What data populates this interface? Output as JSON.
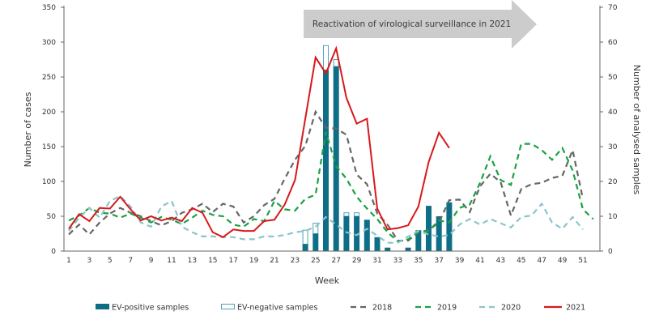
{
  "chart_data": {
    "type": "bar+line",
    "title": "",
    "xlabel": "Week",
    "ylabel_left": "Number of cases",
    "ylabel_right": "Number of analysed samples",
    "ylim_left": [
      0,
      350
    ],
    "ylim_right": [
      0,
      70
    ],
    "yticks_left": [
      0,
      50,
      100,
      150,
      200,
      250,
      300,
      350
    ],
    "yticks_right": [
      0,
      10,
      20,
      30,
      40,
      50,
      60,
      70
    ],
    "xticks": [
      1,
      3,
      5,
      7,
      9,
      11,
      13,
      15,
      17,
      19,
      21,
      23,
      25,
      27,
      29,
      31,
      33,
      35,
      37,
      39,
      41,
      43,
      45,
      47,
      49,
      51
    ],
    "x_range": [
      1,
      52
    ],
    "grid": false,
    "annotation": {
      "text": "Reactivation of virological surveillance in 2021",
      "shape": "arrow",
      "from_week": 24,
      "to_week": 47
    },
    "legend_position": "bottom",
    "bars": {
      "axis": "right",
      "weeks": [
        24,
        25,
        26,
        27,
        28,
        29,
        30,
        31,
        32,
        33,
        34,
        35,
        36,
        37,
        38
      ],
      "series": [
        {
          "name": "EV-positive samples",
          "color": "#0f6e87",
          "values": [
            2,
            5,
            52,
            53,
            10,
            10,
            9,
            4,
            1,
            0,
            1,
            6,
            13,
            10,
            14
          ]
        },
        {
          "name": "EV-negative samples",
          "color": "#ffffff",
          "stroke": "#4fa3b8",
          "values": [
            4,
            3,
            7,
            2,
            1,
            1,
            0,
            0,
            0,
            0,
            0,
            0,
            0,
            0,
            0
          ]
        }
      ]
    },
    "lines": [
      {
        "name": "2018",
        "color": "#666666",
        "dashed": true,
        "axis": "left",
        "weeks": [
          1,
          2,
          3,
          4,
          5,
          6,
          7,
          8,
          9,
          10,
          11,
          12,
          13,
          14,
          15,
          16,
          17,
          18,
          19,
          20,
          21,
          22,
          23,
          24,
          25,
          26,
          27,
          28,
          29,
          30,
          31,
          32,
          33,
          34,
          35,
          36,
          37,
          38,
          39,
          40,
          41,
          42,
          43,
          44,
          45,
          46,
          47,
          48,
          49,
          50,
          51
        ],
        "values": [
          24,
          38,
          24,
          41,
          54,
          62,
          55,
          50,
          43,
          37,
          43,
          55,
          60,
          68,
          56,
          68,
          64,
          41,
          50,
          66,
          75,
          104,
          131,
          151,
          200,
          177,
          176,
          167,
          110,
          96,
          54,
          38,
          15,
          15,
          27,
          30,
          41,
          73,
          74,
          56,
          93,
          111,
          99,
          51,
          89,
          96,
          98,
          105,
          108,
          145,
          75
        ]
      },
      {
        "name": "2019",
        "color": "#1aa142",
        "dashed": true,
        "axis": "left",
        "weeks": [
          1,
          2,
          3,
          4,
          5,
          6,
          7,
          8,
          9,
          10,
          11,
          12,
          13,
          14,
          15,
          16,
          17,
          18,
          19,
          20,
          21,
          22,
          23,
          24,
          25,
          26,
          27,
          28,
          29,
          30,
          31,
          32,
          33,
          34,
          35,
          36,
          37,
          38,
          39,
          40,
          41,
          42,
          43,
          44,
          45,
          46,
          47,
          48,
          49,
          50,
          51,
          52
        ],
        "values": [
          44,
          51,
          62,
          55,
          54,
          48,
          54,
          48,
          41,
          49,
          45,
          39,
          48,
          58,
          52,
          50,
          38,
          35,
          46,
          43,
          72,
          60,
          58,
          75,
          81,
          171,
          122,
          104,
          78,
          61,
          46,
          27,
          14,
          17,
          27,
          29,
          44,
          41,
          62,
          67,
          98,
          136,
          102,
          95,
          154,
          154,
          145,
          131,
          148,
          116,
          60,
          46
        ]
      },
      {
        "name": "2020",
        "color": "#8cc4cc",
        "dashed": true,
        "axis": "left",
        "weeks": [
          1,
          2,
          3,
          4,
          5,
          6,
          7,
          8,
          9,
          10,
          11,
          12,
          13,
          14,
          15,
          16,
          17,
          18,
          19,
          20,
          21,
          22,
          23,
          24,
          25,
          26,
          27,
          28,
          29,
          30,
          31,
          32,
          33,
          34,
          35,
          36,
          37,
          38,
          39,
          40,
          41,
          42,
          43,
          44,
          45,
          46,
          47,
          48,
          49,
          50,
          51
        ],
        "values": [
          29,
          48,
          62,
          48,
          72,
          79,
          64,
          41,
          35,
          64,
          72,
          35,
          27,
          21,
          21,
          20,
          20,
          17,
          17,
          21,
          21,
          23,
          27,
          29,
          35,
          49,
          38,
          27,
          23,
          32,
          22,
          12,
          12,
          21,
          29,
          24,
          21,
          23,
          38,
          46,
          38,
          46,
          40,
          34,
          49,
          51,
          68,
          41,
          32,
          49,
          31
        ]
      },
      {
        "name": "2021",
        "color": "#d7191c",
        "dashed": false,
        "axis": "left",
        "weeks": [
          1,
          2,
          3,
          4,
          5,
          6,
          7,
          8,
          9,
          10,
          11,
          12,
          13,
          14,
          15,
          16,
          17,
          18,
          19,
          20,
          21,
          22,
          23,
          24,
          25,
          26,
          27,
          28,
          29,
          30,
          31,
          32,
          33,
          34,
          35,
          36,
          37,
          38
        ],
        "values": [
          32,
          53,
          43,
          62,
          61,
          78,
          60,
          44,
          50,
          44,
          48,
          43,
          62,
          55,
          27,
          20,
          31,
          29,
          29,
          43,
          45,
          67,
          102,
          190,
          278,
          255,
          291,
          220,
          183,
          190,
          61,
          31,
          33,
          37,
          64,
          128,
          170,
          148
        ]
      }
    ],
    "legend": [
      {
        "label": "EV-positive samples",
        "kind": "bar-filled"
      },
      {
        "label": "EV-negative samples",
        "kind": "bar-outline"
      },
      {
        "label": "2018",
        "kind": "dashed"
      },
      {
        "label": "2019",
        "kind": "dashed"
      },
      {
        "label": "2020",
        "kind": "dashed"
      },
      {
        "label": "2021",
        "kind": "solid"
      }
    ]
  }
}
